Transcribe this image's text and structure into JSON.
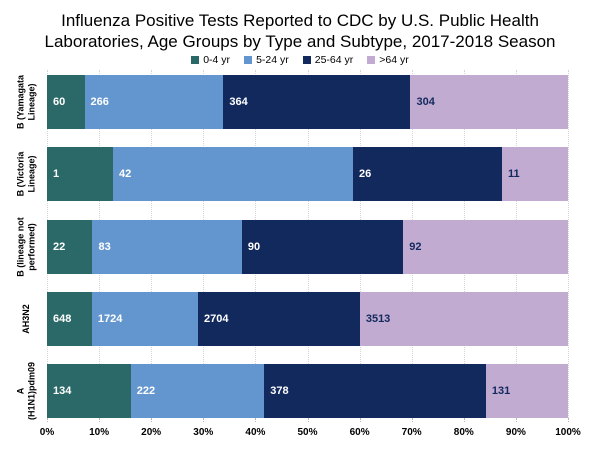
{
  "title_lines": [
    "Influenza Positive Tests Reported to CDC by U.S. Public Health",
    "Laboratories, Age Groups by Type and Subtype, 2017-2018 Season"
  ],
  "chart_data": {
    "type": "bar",
    "orientation": "horizontal",
    "stacked": true,
    "title": "Influenza Positive Tests Reported to CDC by U.S. Public Health Laboratories, Age Groups by Type and Subtype, 2017-2018 Season",
    "legend_position": "top",
    "grid": true,
    "x_axis": {
      "range_pct": [
        0,
        100
      ],
      "tick_step_pct": 10,
      "ticks": [
        "0%",
        "10%",
        "20%",
        "30%",
        "40%",
        "50%",
        "60%",
        "70%",
        "80%",
        "90%",
        "100%"
      ]
    },
    "legend": [
      {
        "label": "0-4 yr",
        "color": "#2B6868",
        "value_text_color": "#FFFFFF"
      },
      {
        "label": "5-24 yr",
        "color": "#6396CE",
        "value_text_color": "#FFFFFF"
      },
      {
        "label": "25-64 yr",
        "color": "#12295E",
        "value_text_color": "#FFFFFF"
      },
      {
        "label": ">64 yr",
        "color": "#C2ABD1",
        "value_text_color": "#12295E"
      }
    ],
    "categories": [
      "B (Yamagata Lineage)",
      "B (Victoria Lineage)",
      "B (lineage not performed)",
      "AH3N2",
      "A (H1N1)pdm09"
    ],
    "series": [
      {
        "name": "0-4 yr",
        "values": [
          60,
          1,
          22,
          648,
          134
        ]
      },
      {
        "name": "5-24 yr",
        "values": [
          266,
          42,
          83,
          1724,
          222
        ]
      },
      {
        "name": "25-64 yr",
        "values": [
          364,
          26,
          90,
          2704,
          378
        ]
      },
      {
        "name": ">64 yr",
        "values": [
          304,
          11,
          92,
          3513,
          131
        ]
      }
    ],
    "rows": [
      {
        "label_lines": [
          "B (Yamagata",
          "Lineage)"
        ],
        "values": [
          60,
          266,
          364,
          304
        ],
        "display_pct": [
          7.2,
          26.66,
          35.91,
          30.23
        ]
      },
      {
        "label_lines": [
          "B (Victoria",
          "Lineage)"
        ],
        "values": [
          1,
          42,
          26,
          11
        ],
        "display_pct": [
          12.67,
          46.07,
          28.6,
          12.66
        ]
      },
      {
        "label_lines": [
          "B (lineage not",
          "performed)"
        ],
        "values": [
          22,
          83,
          90,
          92
        ],
        "display_pct": [
          8.73,
          28.68,
          30.98,
          31.61
        ]
      },
      {
        "label_lines": [
          "AH3N2"
        ],
        "values": [
          648,
          1724,
          2704,
          3513
        ],
        "display_pct": [
          8.62,
          20.36,
          31.07,
          39.95
        ]
      },
      {
        "label_lines": [
          "A",
          "(H1N1)pdm09"
        ],
        "values": [
          134,
          222,
          378,
          131
        ],
        "display_pct": [
          16.08,
          25.62,
          42.55,
          15.75
        ]
      }
    ]
  },
  "colors": {
    "background": "#FFFFFF",
    "gridline": "#D5D5D5",
    "tick": "#B5B5B5",
    "title_text": "#000000",
    "axis_text": "#000000"
  }
}
